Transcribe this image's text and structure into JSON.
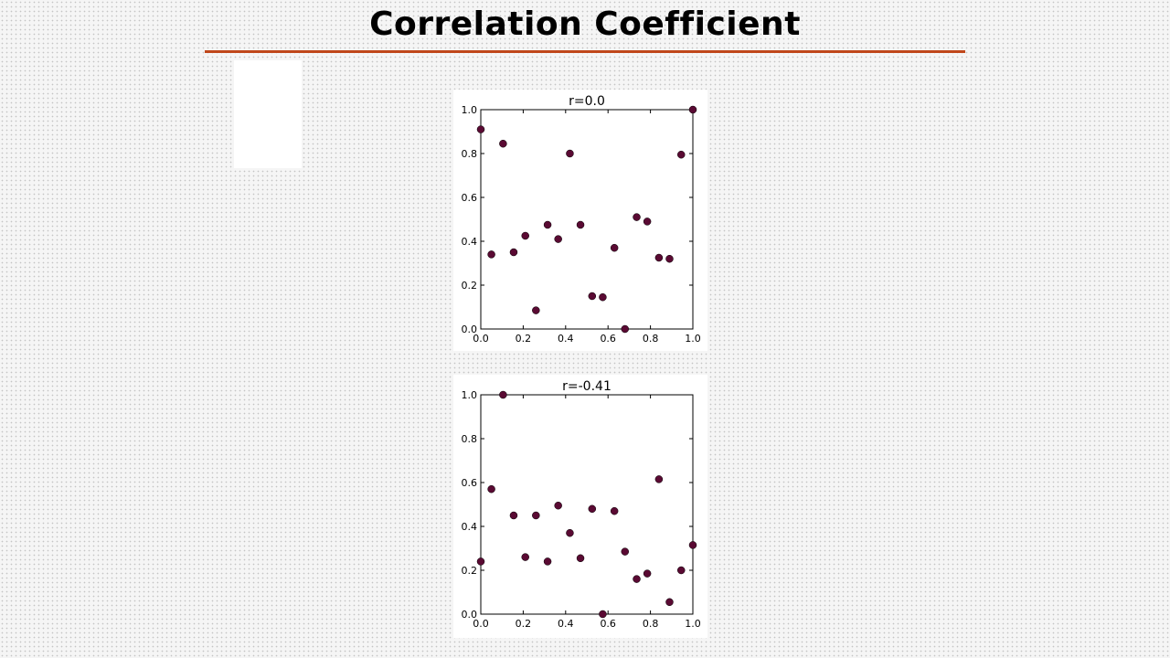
{
  "slide": {
    "title": "Correlation Coefficient",
    "accent_color": "#c0471b"
  },
  "chart_data": [
    {
      "type": "scatter",
      "title": "r=0.0",
      "xlabel": "",
      "ylabel": "",
      "xlim": [
        0.0,
        1.0
      ],
      "ylim": [
        0.0,
        1.0
      ],
      "xticks": [
        "0.0",
        "0.2",
        "0.4",
        "0.6",
        "0.8",
        "1.0"
      ],
      "yticks": [
        "0.0",
        "0.2",
        "0.4",
        "0.6",
        "0.8",
        "1.0"
      ],
      "grid": false,
      "marker_color": "#5a0a33",
      "points": [
        [
          0.0,
          0.91
        ],
        [
          0.05,
          0.34
        ],
        [
          0.105,
          0.845
        ],
        [
          0.155,
          0.35
        ],
        [
          0.21,
          0.425
        ],
        [
          0.26,
          0.085
        ],
        [
          0.315,
          0.475
        ],
        [
          0.365,
          0.41
        ],
        [
          0.42,
          0.8
        ],
        [
          0.47,
          0.475
        ],
        [
          0.525,
          0.15
        ],
        [
          0.575,
          0.145
        ],
        [
          0.63,
          0.37
        ],
        [
          0.68,
          0.0
        ],
        [
          0.735,
          0.51
        ],
        [
          0.785,
          0.49
        ],
        [
          0.84,
          0.325
        ],
        [
          0.89,
          0.32
        ],
        [
          0.945,
          0.795
        ],
        [
          1.0,
          1.0
        ]
      ]
    },
    {
      "type": "scatter",
      "title": "r=-0.41",
      "xlabel": "",
      "ylabel": "",
      "xlim": [
        0.0,
        1.0
      ],
      "ylim": [
        0.0,
        1.0
      ],
      "xticks": [
        "0.0",
        "0.2",
        "0.4",
        "0.6",
        "0.8",
        "1.0"
      ],
      "yticks": [
        "0.0",
        "0.2",
        "0.4",
        "0.6",
        "0.8",
        "1.0"
      ],
      "grid": false,
      "marker_color": "#5a0a33",
      "points": [
        [
          0.0,
          0.24
        ],
        [
          0.05,
          0.57
        ],
        [
          0.105,
          1.0
        ],
        [
          0.155,
          0.45
        ],
        [
          0.21,
          0.26
        ],
        [
          0.26,
          0.45
        ],
        [
          0.315,
          0.24
        ],
        [
          0.365,
          0.495
        ],
        [
          0.42,
          0.37
        ],
        [
          0.47,
          0.255
        ],
        [
          0.525,
          0.48
        ],
        [
          0.575,
          0.0
        ],
        [
          0.63,
          0.47
        ],
        [
          0.68,
          0.285
        ],
        [
          0.735,
          0.16
        ],
        [
          0.785,
          0.185
        ],
        [
          0.84,
          0.615
        ],
        [
          0.89,
          0.055
        ],
        [
          0.945,
          0.2
        ],
        [
          1.0,
          0.315
        ]
      ]
    }
  ]
}
